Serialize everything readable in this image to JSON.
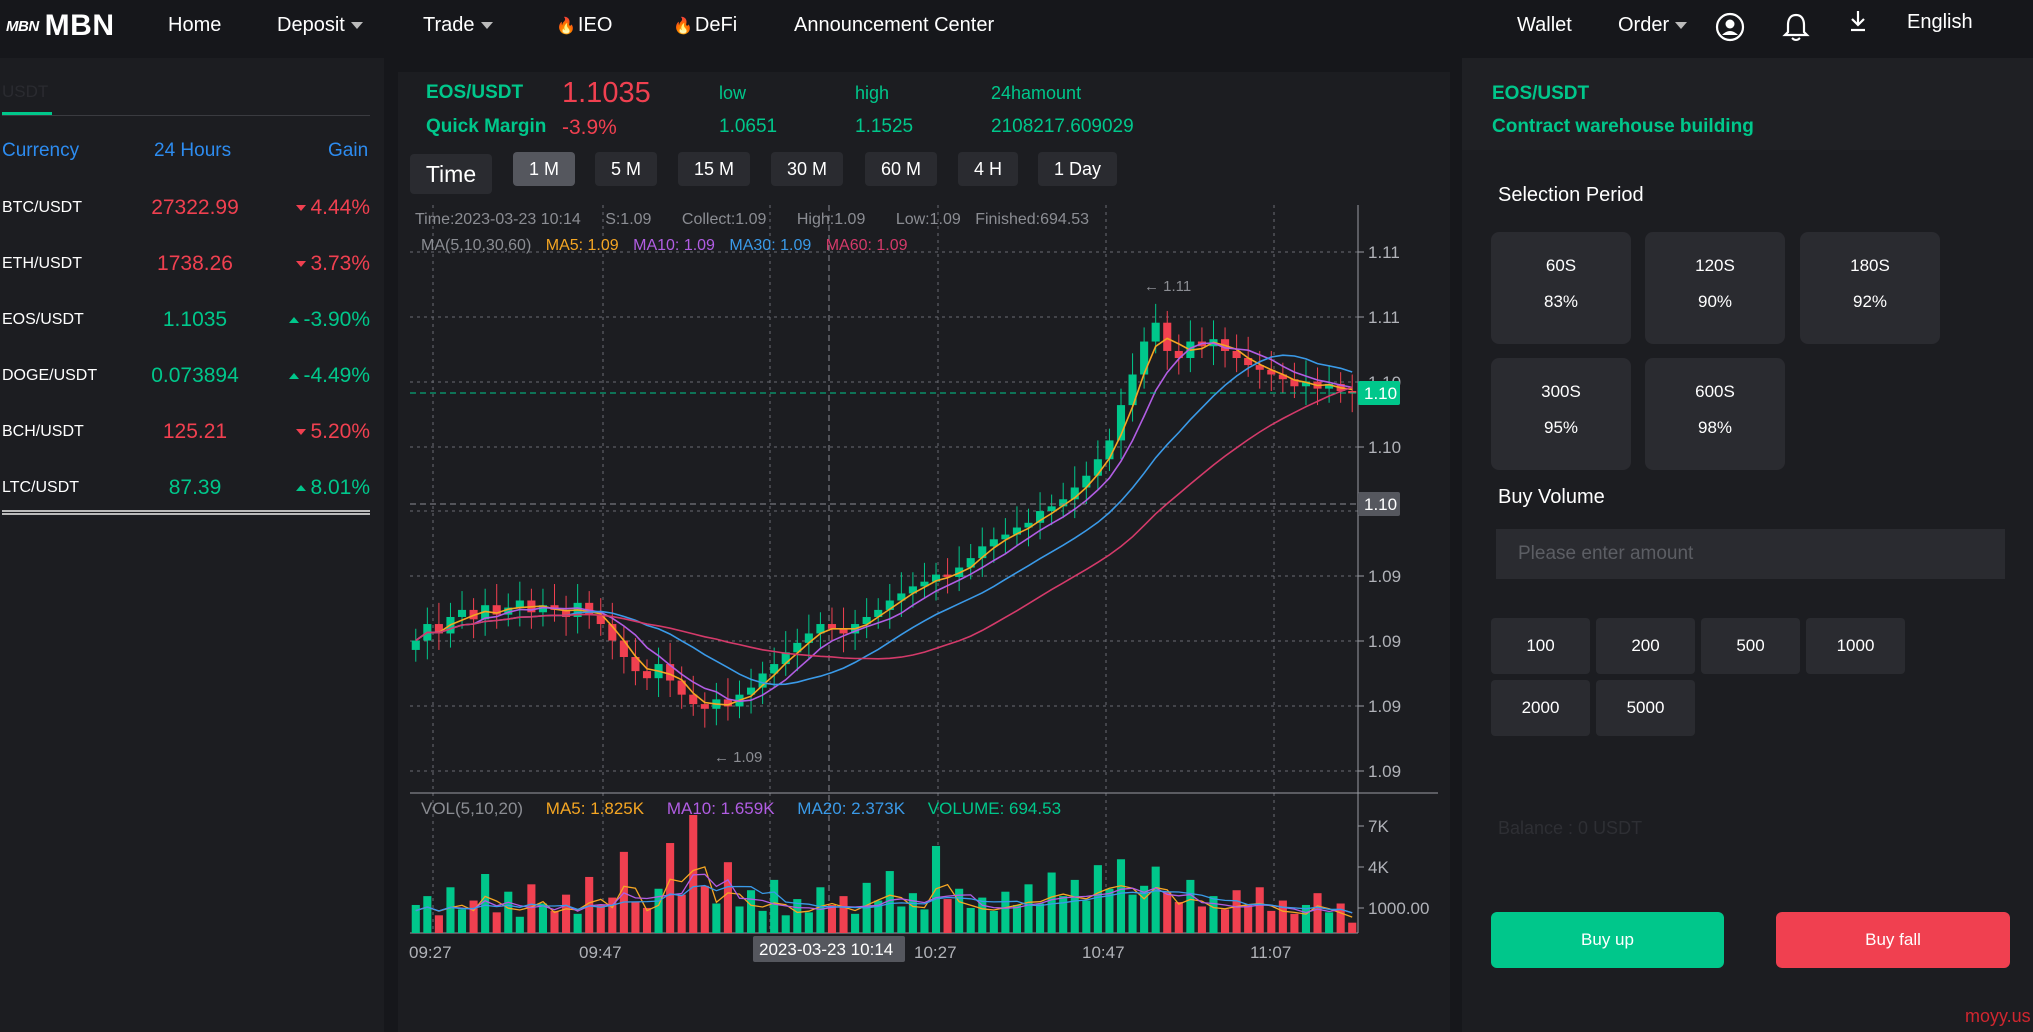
{
  "nav": {
    "logo_mark": "MBN",
    "logo_text": "MBN",
    "home": "Home",
    "deposit": "Deposit",
    "trade": "Trade",
    "ieo": "IEO",
    "defi": "DeFi",
    "announcement": "Announcement Center",
    "wallet": "Wallet",
    "order": "Order",
    "language": "English",
    "icons": [
      "user-circle-icon",
      "bell-icon",
      "download-icon",
      "fire-icon",
      "caret-down-icon"
    ]
  },
  "market_list": {
    "tab": "USDT",
    "headers": {
      "currency": "Currency",
      "hours": "24 Hours",
      "gain": "Gain"
    },
    "rows": [
      {
        "pair": "BTC/USDT",
        "price": "27322.99",
        "gain": "4.44%",
        "direction": "down"
      },
      {
        "pair": "ETH/USDT",
        "price": "1738.26",
        "gain": "3.73%",
        "direction": "down"
      },
      {
        "pair": "EOS/USDT",
        "price": "1.1035",
        "gain": "-3.90%",
        "direction": "up"
      },
      {
        "pair": "DOGE/USDT",
        "price": "0.073894",
        "gain": "-4.49%",
        "direction": "up"
      },
      {
        "pair": "BCH/USDT",
        "price": "125.21",
        "gain": "5.20%",
        "direction": "down"
      },
      {
        "pair": "LTC/USDT",
        "price": "87.39",
        "gain": "8.01%",
        "direction": "up"
      }
    ]
  },
  "ticker": {
    "pair": "EOS/USDT",
    "price": "1.1035",
    "margin_label": "Quick Margin",
    "margin_value": "-3.9%",
    "low_label": "low",
    "low_value": "1.0651",
    "high_label": "high",
    "high_value": "1.1525",
    "amount_label": "24hamount",
    "amount_value": "2108217.609029"
  },
  "periods": {
    "time_label": "Time",
    "options": [
      "1 M",
      "5 M",
      "15 M",
      "30 M",
      "60 M",
      "4 H",
      "1 Day"
    ],
    "active": "1 M"
  },
  "chart_info": {
    "time": "Time:2023-03-23 10:14",
    "s": "S:1.09",
    "collect": "Collect:1.09",
    "high": "High:1.09",
    "low": "Low:1.09",
    "finished": "Finished:694.53",
    "ma_title": "MA(5,10,30,60)",
    "ma5": "MA5: 1.09",
    "ma10": "MA10: 1.09",
    "ma30": "MA30: 1.09",
    "ma60": "MA60: 1.09",
    "vol_title": "VOL(5,10,20)",
    "vol_ma5": "MA5: 1.825K",
    "vol_ma10": "MA10: 1.659K",
    "vol_ma20": "MA20: 2.373K",
    "vol_volume": "VOLUME: 694.53",
    "price_ticks": [
      "1.11",
      "1.11",
      "1.10",
      "1.10",
      "1.09",
      "1.09",
      "1.09",
      "1.09"
    ],
    "vol_ticks": [
      "7K",
      "4K",
      "1000.00"
    ],
    "time_ticks": [
      "09:27",
      "09:47",
      "10:27",
      "10:47",
      "11:07"
    ],
    "crosshair_time": "2023-03-23 10:14",
    "current_price_tag": "1.10",
    "crosshair_price_tag": "1.10",
    "max_mark": "1.11",
    "min_mark": "1.09"
  },
  "chart_data": {
    "type": "candlestick",
    "pair": "EOS/USDT",
    "interval": "1 M",
    "x_range": [
      "09:27",
      "11:17"
    ],
    "ylim": [
      1.088,
      1.112
    ],
    "volume_ylim": [
      0,
      8000
    ],
    "x_ticks": [
      "09:27",
      "09:47",
      "10:27",
      "10:47",
      "11:07"
    ],
    "close_path": [
      1.0935,
      1.0942,
      1.0938,
      1.0945,
      1.0948,
      1.0944,
      1.095,
      1.0946,
      1.0949,
      1.0952,
      1.0947,
      1.095,
      1.0948,
      1.0945,
      1.0951,
      1.0946,
      1.0942,
      1.0935,
      1.0928,
      1.0922,
      1.0919,
      1.0925,
      1.0918,
      1.0912,
      1.0908,
      1.0906,
      1.091,
      1.0907,
      1.0912,
      1.0915,
      1.0921,
      1.0925,
      1.093,
      1.0934,
      1.0938,
      1.0942,
      1.094,
      1.0938,
      1.0942,
      1.0945,
      1.0948,
      1.0952,
      1.0955,
      1.0958,
      1.096,
      1.0963,
      1.0962,
      1.0966,
      1.097,
      1.0975,
      1.0978,
      1.098,
      1.0983,
      1.0985,
      1.099,
      1.0992,
      1.0995,
      1.1,
      1.1005,
      1.1012,
      1.102,
      1.1035,
      1.1048,
      1.1062,
      1.107,
      1.1058,
      1.1055,
      1.1062,
      1.106,
      1.1063,
      1.1058,
      1.1055,
      1.1052,
      1.105,
      1.1048,
      1.1046,
      1.1043,
      1.1045,
      1.1042,
      1.1044,
      1.1041,
      1.104
    ],
    "volume_path": [
      1.9,
      2.5,
      1.2,
      3.1,
      1.6,
      2.2,
      4.0,
      1.4,
      2.8,
      1.1,
      3.3,
      2.0,
      1.5,
      2.6,
      1.3,
      3.8,
      1.9,
      2.4,
      5.5,
      2.1,
      1.7,
      3.0,
      6.1,
      2.6,
      8.0,
      3.2,
      2.0,
      4.8,
      1.8,
      2.9,
      1.5,
      3.6,
      1.2,
      2.3,
      1.4,
      3.1,
      1.9,
      2.5,
      1.3,
      3.4,
      2.2,
      4.2,
      1.8,
      2.7,
      1.6,
      5.9,
      2.3,
      3.0,
      1.7,
      2.4,
      1.5,
      2.8,
      1.9,
      3.3,
      2.0,
      4.1,
      2.5,
      3.6,
      2.2,
      4.6,
      3.0,
      5.0,
      2.6,
      3.2,
      4.5,
      2.8,
      2.1,
      3.6,
      1.8,
      2.5,
      1.6,
      2.9,
      1.9,
      3.1,
      1.5,
      2.2,
      1.3,
      1.9,
      2.7,
      1.4,
      2.0,
      0.7
    ],
    "ma_lines": [
      "MA5",
      "MA10",
      "MA30",
      "MA60"
    ],
    "ma_colors": {
      "MA5": "#f5a623",
      "MA10": "#b15de3",
      "MA30": "#3a9ae8",
      "MA60": "#d43a6a"
    }
  },
  "trade_panel": {
    "pair": "EOS/USDT",
    "subtitle": "Contract warehouse building",
    "selection_title": "Selection Period",
    "options": [
      {
        "time": "60S",
        "rate": "83%"
      },
      {
        "time": "120S",
        "rate": "90%"
      },
      {
        "time": "180S",
        "rate": "92%"
      },
      {
        "time": "300S",
        "rate": "95%"
      },
      {
        "time": "600S",
        "rate": "98%"
      }
    ],
    "buy_volume_title": "Buy Volume",
    "amount_placeholder": "Please enter amount",
    "amounts": [
      "100",
      "200",
      "500",
      "1000",
      "2000",
      "5000"
    ],
    "balance": "Balance :  0 USDT",
    "buy_up": "Buy up",
    "buy_fall": "Buy fall"
  },
  "watermark": "moyy.us",
  "colors": {
    "green": "#00c78b",
    "red": "#f04050",
    "blue": "#2d8cf0",
    "bg": "#16171b",
    "panel": "#1c1d21"
  }
}
